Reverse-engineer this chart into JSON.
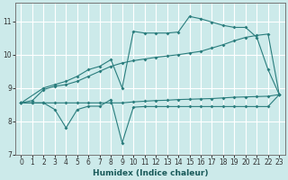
{
  "xlabel": "Humidex (Indice chaleur)",
  "bg_color": "#cceaea",
  "grid_color": "#ffffff",
  "line_color": "#2a7d7d",
  "xlim": [
    -0.5,
    23.5
  ],
  "ylim": [
    7,
    11.55
  ],
  "yticks": [
    7,
    8,
    9,
    10,
    11
  ],
  "xticks": [
    0,
    1,
    2,
    3,
    4,
    5,
    6,
    7,
    8,
    9,
    10,
    11,
    12,
    13,
    14,
    15,
    16,
    17,
    18,
    19,
    20,
    21,
    22,
    23
  ],
  "s1_x": [
    0,
    1,
    2,
    3,
    4,
    5,
    6,
    7,
    8,
    9,
    10,
    11,
    12,
    13,
    14,
    15,
    16,
    17,
    18,
    19,
    20,
    21,
    22,
    23
  ],
  "s1_y": [
    8.55,
    8.55,
    8.55,
    8.55,
    8.55,
    8.55,
    8.55,
    8.55,
    8.55,
    8.55,
    8.58,
    8.6,
    8.62,
    8.63,
    8.65,
    8.66,
    8.67,
    8.68,
    8.7,
    8.72,
    8.73,
    8.74,
    8.75,
    8.8
  ],
  "s2_x": [
    0,
    1,
    2,
    3,
    4,
    5,
    6,
    7,
    8,
    9,
    10,
    11,
    12,
    13,
    14,
    15,
    16,
    17,
    18,
    19,
    20,
    21,
    22,
    23
  ],
  "s2_y": [
    8.55,
    8.62,
    8.95,
    9.05,
    9.1,
    9.2,
    9.35,
    9.5,
    9.65,
    9.75,
    9.82,
    9.87,
    9.92,
    9.96,
    10.0,
    10.05,
    10.1,
    10.2,
    10.3,
    10.42,
    10.52,
    10.58,
    10.62,
    8.8
  ],
  "s3_x": [
    0,
    2,
    3,
    4,
    5,
    6,
    7,
    8,
    9,
    10,
    11,
    12,
    13,
    14,
    15,
    16,
    17,
    18,
    19,
    20,
    21,
    22,
    23
  ],
  "s3_y": [
    8.55,
    9.0,
    9.1,
    9.2,
    9.35,
    9.55,
    9.65,
    9.85,
    9.0,
    10.7,
    10.65,
    10.65,
    10.65,
    10.68,
    11.15,
    11.08,
    10.98,
    10.88,
    10.82,
    10.82,
    10.52,
    9.55,
    8.8
  ],
  "s4_x": [
    0,
    1,
    2,
    3,
    4,
    5,
    6,
    7,
    8,
    9,
    10,
    11,
    12,
    13,
    14,
    15,
    16,
    17,
    18,
    19,
    20,
    21,
    22,
    23
  ],
  "s4_y": [
    8.55,
    8.55,
    8.55,
    8.35,
    7.8,
    8.35,
    8.45,
    8.45,
    8.65,
    7.35,
    8.42,
    8.44,
    8.44,
    8.44,
    8.44,
    8.44,
    8.44,
    8.44,
    8.44,
    8.44,
    8.44,
    8.44,
    8.44,
    8.8
  ]
}
